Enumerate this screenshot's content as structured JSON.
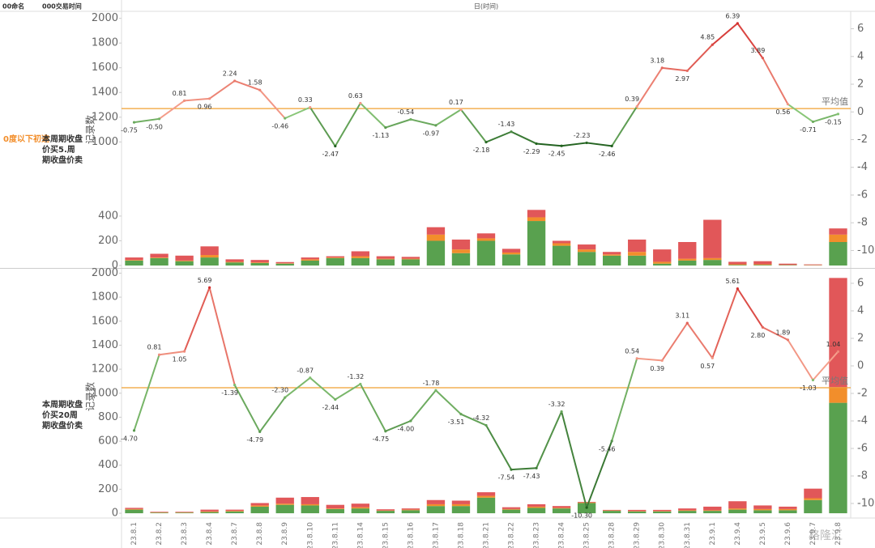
{
  "header": {
    "col1": "00命名",
    "col2": "000交易时间",
    "col3": "日(时间)"
  },
  "filter_label": "0度以下初选",
  "watermark": "格隆汇",
  "chart_data": [
    {
      "type": "bar_line",
      "row_label": "本周期收盘价买5.周期收盘价卖",
      "y_label": "记录数",
      "categories": [
        "23.8.1",
        "23.8.2",
        "23.8.3",
        "23.8.4",
        "23.8.7",
        "23.8.8",
        "23.8.9",
        "23.8.10",
        "23.8.11",
        "23.8.14",
        "23.8.15",
        "23.8.16",
        "23.8.17",
        "23.8.18",
        "23.8.21",
        "23.8.22",
        "23.8.23",
        "23.8.24",
        "23.8.25",
        "23.8.28",
        "23.8.29",
        "23.8.30",
        "23.8.31",
        "23.9.1",
        "23.9.4",
        "23.9.5",
        "23.9.6",
        "23.9.7",
        "23.9.8"
      ],
      "series": [
        {
          "color": "#59a14f",
          "values": [
            40,
            60,
            35,
            65,
            25,
            20,
            15,
            40,
            60,
            60,
            50,
            50,
            200,
            100,
            200,
            90,
            360,
            160,
            110,
            80,
            80,
            15,
            40,
            45,
            5,
            5,
            3,
            2,
            190
          ]
        },
        {
          "color": "#f28e2b",
          "values": [
            5,
            5,
            5,
            20,
            5,
            5,
            3,
            10,
            5,
            15,
            5,
            5,
            50,
            30,
            20,
            15,
            30,
            20,
            20,
            10,
            30,
            15,
            15,
            15,
            5,
            5,
            2,
            2,
            60
          ]
        },
        {
          "color": "#e15759",
          "values": [
            20,
            30,
            40,
            70,
            20,
            20,
            10,
            15,
            10,
            40,
            20,
            15,
            60,
            80,
            40,
            30,
            60,
            20,
            40,
            20,
            100,
            100,
            135,
            310,
            20,
            25,
            10,
            5,
            50
          ]
        }
      ],
      "line": {
        "axis": "y2",
        "colors": [
          "#1f5f1d",
          "#8cc97a",
          "#f5a08c",
          "#d32f2f"
        ],
        "values": [
          -0.75,
          -0.5,
          0.81,
          0.96,
          2.24,
          1.58,
          -0.46,
          0.33,
          -2.47,
          0.63,
          -1.13,
          -0.54,
          -0.97,
          0.17,
          -2.18,
          -1.43,
          -2.29,
          -2.45,
          -2.23,
          -2.46,
          0.39,
          3.18,
          2.97,
          4.85,
          6.39,
          3.89,
          0.56,
          -0.71,
          -0.15
        ],
        "value_labels": [
          "-0.75",
          "-0.50",
          "0.81",
          "0.96",
          "2.24",
          "1.58",
          "-0.46",
          "0.33",
          "-2.47",
          "0.63",
          "-1.13",
          "-0.54",
          "-0.97",
          "0.17",
          "-2.18",
          "-1.43",
          "-2.29",
          "-2.45",
          "-2.23",
          "-2.46",
          "0.39",
          "3.18",
          "2.97",
          "4.85",
          "6.39",
          "3.89",
          "0.56",
          "-0.71",
          "-0.15"
        ]
      },
      "reference_line": {
        "label": "平均值",
        "value": 0.24,
        "axis": "y2",
        "color": "#f0a030"
      },
      "ylim": [
        -13,
        2050
      ],
      "yticks": [
        0,
        200,
        400,
        1000,
        1200,
        1400,
        1600,
        1800,
        2000
      ],
      "y2lim": [
        -11.2,
        7.2
      ],
      "y2ticks": [
        -10,
        -8,
        -6,
        -4,
        -2,
        0,
        2,
        4,
        6
      ]
    },
    {
      "type": "bar_line",
      "row_label": "本周期收盘价买20周期收盘价卖",
      "y_label": "记录数",
      "categories": [
        "23.8.1",
        "23.8.2",
        "23.8.3",
        "23.8.4",
        "23.8.7",
        "23.8.8",
        "23.8.9",
        "23.8.10",
        "23.8.11",
        "23.8.14",
        "23.8.15",
        "23.8.16",
        "23.8.17",
        "23.8.18",
        "23.8.21",
        "23.8.22",
        "23.8.23",
        "23.8.24",
        "23.8.25",
        "23.8.28",
        "23.8.29",
        "23.8.30",
        "23.8.31",
        "23.9.1",
        "23.9.4",
        "23.9.5",
        "23.9.6",
        "23.9.7",
        "23.9.8"
      ],
      "series": [
        {
          "color": "#59a14f",
          "values": [
            30,
            5,
            5,
            10,
            15,
            55,
            70,
            65,
            35,
            40,
            20,
            25,
            60,
            60,
            130,
            30,
            45,
            40,
            85,
            20,
            15,
            15,
            20,
            20,
            30,
            25,
            25,
            110,
            920
          ]
        },
        {
          "color": "#f28e2b",
          "values": [
            5,
            2,
            2,
            5,
            5,
            10,
            10,
            10,
            5,
            10,
            3,
            5,
            15,
            15,
            15,
            5,
            10,
            5,
            5,
            3,
            3,
            3,
            5,
            5,
            10,
            10,
            10,
            15,
            130
          ]
        },
        {
          "color": "#e15759",
          "values": [
            10,
            5,
            5,
            15,
            10,
            20,
            50,
            60,
            30,
            30,
            10,
            10,
            35,
            30,
            30,
            15,
            20,
            15,
            5,
            5,
            10,
            10,
            15,
            30,
            60,
            30,
            20,
            80,
            910
          ]
        }
      ],
      "line": {
        "axis": "y2",
        "colors": [
          "#1f5f1d",
          "#8cc97a",
          "#f5a08c",
          "#d32f2f"
        ],
        "values": [
          -4.7,
          0.81,
          1.05,
          5.69,
          -1.39,
          -4.79,
          -2.3,
          -0.87,
          -2.44,
          -1.32,
          -4.75,
          -4.0,
          -1.78,
          -3.51,
          -4.32,
          -7.54,
          -7.43,
          -3.32,
          -10.3,
          -5.46,
          0.54,
          0.39,
          3.11,
          0.57,
          5.61,
          2.8,
          1.89,
          -1.03,
          1.04
        ],
        "value_labels": [
          "-4.70",
          "0.81",
          "1.05",
          "5.69",
          "-1.39",
          "-4.79",
          "-2.30",
          "-0.87",
          "-2.44",
          "-1.32",
          "-4.75",
          "-4.00",
          "-1.78",
          "-3.51",
          "-4.32",
          "-7.54",
          "-7.43",
          "-3.32",
          "-10.30",
          "-5.46",
          "0.54",
          "0.39",
          "3.11",
          "0.57",
          "5.61",
          "2.80",
          "1.89",
          "-1.03",
          "1.04"
        ]
      },
      "reference_line": {
        "label": "平均值",
        "value": -1.59,
        "axis": "y2",
        "color": "#f0a030"
      },
      "ylim": [
        -40,
        2030
      ],
      "yticks": [
        0,
        200,
        400,
        600,
        800,
        1000,
        1200,
        1400,
        1600,
        1800,
        2000
      ],
      "y2lim": [
        -11.06,
        7
      ],
      "y2ticks": [
        -10,
        -8,
        -6,
        -4,
        -2,
        0,
        2,
        4,
        6
      ]
    }
  ]
}
